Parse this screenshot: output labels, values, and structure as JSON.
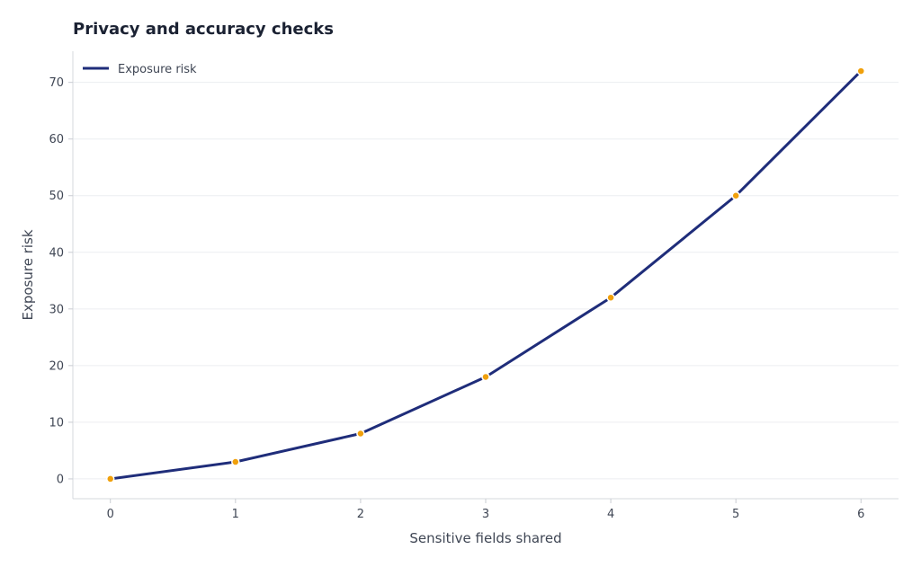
{
  "chart_data": {
    "type": "line",
    "title": "Privacy and accuracy checks",
    "xlabel": "Sensitive fields shared",
    "ylabel": "Exposure risk",
    "x": [
      0,
      1,
      2,
      3,
      4,
      5,
      6
    ],
    "series": [
      {
        "name": "Exposure risk",
        "values": [
          0,
          3,
          8,
          18,
          32,
          50,
          72
        ],
        "line_color": "#1f2d7a",
        "marker_color": "#f0a00c"
      }
    ],
    "xticks": [
      0,
      1,
      2,
      3,
      4,
      5,
      6
    ],
    "yticks": [
      0,
      10,
      20,
      30,
      40,
      50,
      60,
      70
    ],
    "xlim": [
      -0.3,
      6.3
    ],
    "ylim": [
      -3.5,
      75.5
    ],
    "grid": "horizontal",
    "legend": "top-left"
  }
}
